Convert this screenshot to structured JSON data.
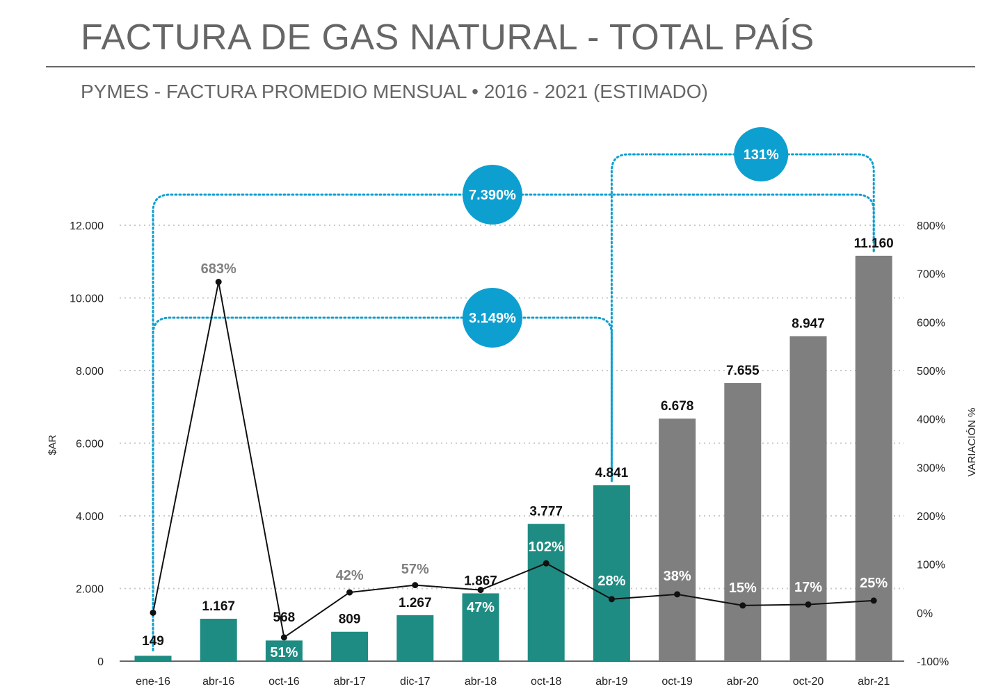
{
  "title": "FACTURA DE GAS NATURAL - TOTAL PAÍS",
  "subtitle": "PYMES - FACTURA PROMEDIO MENSUAL • 2016 - 2021 (ESTIMADO)",
  "colors": {
    "teal": "#1e8c82",
    "gray_bar": "#7f7f7f",
    "bubble": "#0d9fd0",
    "text_dark": "#111111",
    "text_gray": "#808080",
    "grid": "#c8c8c8"
  },
  "chart_data": {
    "type": "bar",
    "categories": [
      "ene-16",
      "abr-16",
      "oct-16",
      "abr-17",
      "dic-17",
      "abr-18",
      "oct-18",
      "abr-19",
      "oct-19",
      "abr-20",
      "oct-20",
      "abr-21"
    ],
    "bar_labels": [
      "149",
      "1.167",
      "568",
      "809",
      "1.267",
      "1.867",
      "3.777",
      "4.841",
      "6.678",
      "7.655",
      "8.947",
      "11.160"
    ],
    "values": [
      149,
      1167,
      568,
      809,
      1267,
      1867,
      3777,
      4841,
      6678,
      7655,
      8947,
      11160
    ],
    "bar_colors": [
      "teal",
      "teal",
      "teal",
      "teal",
      "teal",
      "teal",
      "teal",
      "teal",
      "gray",
      "gray",
      "gray",
      "gray"
    ],
    "variation": [
      null,
      683,
      -51,
      42,
      57,
      47,
      102,
      28,
      38,
      15,
      17,
      25
    ],
    "variation_labels": [
      "",
      "683%",
      "51%",
      "42%",
      "57%",
      "47%",
      "102%",
      "28%",
      "38%",
      "15%",
      "17%",
      "25%"
    ],
    "variation_label_style": [
      "none",
      "gray-above",
      "white-in-bar",
      "gray-above",
      "gray-above",
      "white-in-bar",
      "white-in-bar",
      "white-in-bar",
      "white-in-bar",
      "white-in-bar",
      "white-in-bar",
      "white-in-bar"
    ],
    "ylabel": "$AR",
    "y2label": "VARIACIÓN %",
    "ylim": [
      0,
      12000
    ],
    "yticks": [
      0,
      2000,
      4000,
      6000,
      8000,
      10000,
      12000
    ],
    "ytick_labels": [
      "0",
      "2.000",
      "4.000",
      "6.000",
      "8.000",
      "10.000",
      "12.000"
    ],
    "y2lim": [
      -100,
      800
    ],
    "y2ticks": [
      -100,
      0,
      100,
      200,
      300,
      400,
      500,
      600,
      700,
      800
    ],
    "y2tick_labels": [
      "-100%",
      "0%",
      "100%",
      "200%",
      "300%",
      "400%",
      "500%",
      "600%",
      "700%",
      "800%"
    ],
    "grid": true,
    "legend": "none",
    "annotations": [
      {
        "label": "131%",
        "from": "abr-19",
        "to": "abr-21"
      },
      {
        "label": "7.390%",
        "from": "ene-16",
        "to": "abr-21"
      },
      {
        "label": "3.149%",
        "from": "ene-16",
        "to": "abr-19"
      }
    ]
  }
}
